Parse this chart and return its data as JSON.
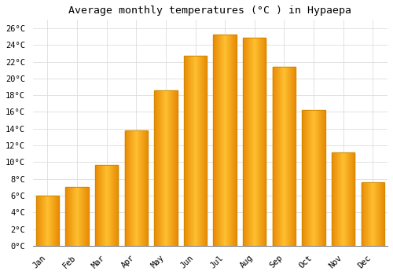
{
  "title": "Average monthly temperatures (°C ) in Hypaepa",
  "months": [
    "Jan",
    "Feb",
    "Mar",
    "Apr",
    "May",
    "Jun",
    "Jul",
    "Aug",
    "Sep",
    "Oct",
    "Nov",
    "Dec"
  ],
  "values": [
    6.0,
    7.0,
    9.7,
    13.8,
    18.6,
    22.7,
    25.2,
    24.9,
    21.4,
    16.2,
    11.2,
    7.6
  ],
  "bar_color_center": "#FFB732",
  "bar_color_edge": "#E8940A",
  "background_color": "#ffffff",
  "grid_color": "#dddddd",
  "yticks": [
    0,
    2,
    4,
    6,
    8,
    10,
    12,
    14,
    16,
    18,
    20,
    22,
    24,
    26
  ],
  "ylim": [
    0,
    27
  ],
  "title_fontsize": 9.5,
  "tick_fontsize": 7.5,
  "font_family": "monospace",
  "bar_width": 0.78,
  "figsize": [
    5.0,
    3.5
  ],
  "dpi": 100
}
